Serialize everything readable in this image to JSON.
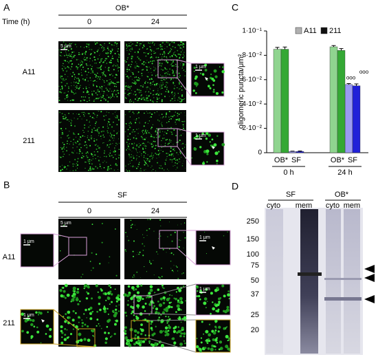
{
  "panels": {
    "a": {
      "label": "A",
      "condition": "OB*",
      "time_label": "Time (h)",
      "times": [
        "0",
        "24"
      ],
      "rows": [
        "A11",
        "211"
      ],
      "scale_bar": "5 µm",
      "inset_scale_bars": [
        "1 µm",
        "1 µm"
      ]
    },
    "b": {
      "label": "B",
      "condition": "SF",
      "times": [
        "0",
        "24"
      ],
      "rows": [
        "A11",
        "211"
      ],
      "scale_bar": "5 µm",
      "inset_scale_bars": [
        "1 µm",
        "1 µm",
        "1 µm",
        "1 µm"
      ]
    },
    "c": {
      "label": "C"
    },
    "d": {
      "label": "D",
      "groups": [
        "SF",
        "OB*"
      ],
      "lanes": [
        "cyto",
        "mem",
        "cyto",
        "mem"
      ],
      "markers": [
        "250",
        "150",
        "100",
        "75",
        "50",
        "37",
        "25",
        "20"
      ]
    }
  },
  "chart_data": {
    "type": "bar",
    "ylabel": "oligomeric puncta/μm²",
    "categories": [
      "OB*",
      "SF",
      "OB*",
      "SF"
    ],
    "groups": [
      "0 h",
      "24 h"
    ],
    "series": [
      {
        "name": "A11",
        "color": "#b0b0b0",
        "bar_colors": [
          "#8fd48f",
          "#9a9af2",
          "#8fd48f",
          "#9a9af2"
        ],
        "values": [
          0.085,
          0.001,
          0.087,
          0.056
        ],
        "errors": [
          0.0015,
          0.0003,
          0.001,
          0.0008
        ],
        "annotations": [
          null,
          null,
          null,
          "ooo"
        ]
      },
      {
        "name": "211",
        "color": "#111111",
        "bar_colors": [
          "#34a834",
          "#2020d8",
          "#34a834",
          "#2020d8"
        ],
        "values": [
          0.085,
          0.001,
          0.084,
          0.055
        ],
        "errors": [
          0.0018,
          0.0004,
          0.0015,
          0.0015
        ],
        "annotations": [
          null,
          null,
          null,
          "ooo"
        ]
      }
    ],
    "ylim": [
      0,
      0.1
    ],
    "yticks": [
      0,
      {
        "value": 0.02,
        "label": "2·10⁻²"
      },
      {
        "value": 0.04,
        "label": "4·10⁻²"
      },
      {
        "value": 0.06,
        "label": "6·10⁻²"
      },
      {
        "value": 0.08,
        "label": "8·10⁻²"
      },
      {
        "value": 0.1,
        "label": "1·10⁻¹"
      }
    ]
  }
}
